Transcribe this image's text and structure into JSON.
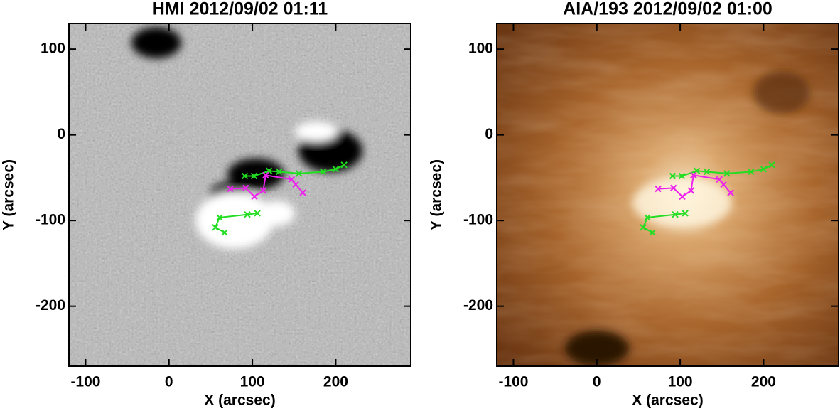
{
  "chart_data": [
    {
      "type": "image",
      "title": "HMI 2012/09/02 01:11",
      "x_label": "X (arcsec)",
      "y_label": "Y (arcsec)",
      "xlim": [
        -120,
        290
      ],
      "ylim": [
        -270,
        130
      ],
      "xticks": [
        -100,
        0,
        100,
        200
      ],
      "yticks": [
        -200,
        -100,
        0,
        100
      ],
      "series": [
        {
          "color": "#22dd22",
          "x": [
            91,
            102,
            120,
            132,
            156,
            185,
            200,
            210
          ],
          "values": [
            -48,
            -48,
            -42,
            -43,
            -45,
            -43,
            -40,
            -35
          ]
        },
        {
          "color": "#ee22ee",
          "x": [
            73.5,
            92,
            102.5,
            113,
            116,
            147,
            152,
            160.5
          ],
          "values": [
            -63,
            -62,
            -72,
            -65,
            -47,
            -52,
            -58,
            -67.5
          ]
        },
        {
          "color": "#22dd22",
          "x": [
            66.7,
            55.6,
            60.7,
            94,
            106
          ],
          "values": [
            -114,
            -108,
            -96.5,
            -93,
            -91.5
          ]
        }
      ]
    },
    {
      "type": "image",
      "title": "AIA/193 2012/09/02 01:00",
      "x_label": "X (arcsec)",
      "y_label": "Y (arcsec)",
      "xlim": [
        -120,
        290
      ],
      "ylim": [
        -270,
        130
      ],
      "xticks": [
        -100,
        0,
        100,
        200
      ],
      "yticks": [
        -200,
        -100,
        0,
        100
      ],
      "series": [
        {
          "color": "#22dd22",
          "x": [
            91,
            102,
            120,
            132,
            156,
            185,
            200,
            210
          ],
          "values": [
            -48,
            -48,
            -42,
            -43,
            -45,
            -43,
            -40,
            -35
          ]
        },
        {
          "color": "#ee22ee",
          "x": [
            73.5,
            92,
            102.5,
            113,
            116,
            147,
            152,
            160.5
          ],
          "values": [
            -63,
            -62,
            -72,
            -65,
            -47,
            -52,
            -58,
            -67.5
          ]
        },
        {
          "color": "#22dd22",
          "x": [
            66.7,
            55.6,
            60.7,
            94,
            106
          ],
          "values": [
            -114,
            -108,
            -96.5,
            -93,
            -91.5
          ]
        }
      ]
    }
  ]
}
